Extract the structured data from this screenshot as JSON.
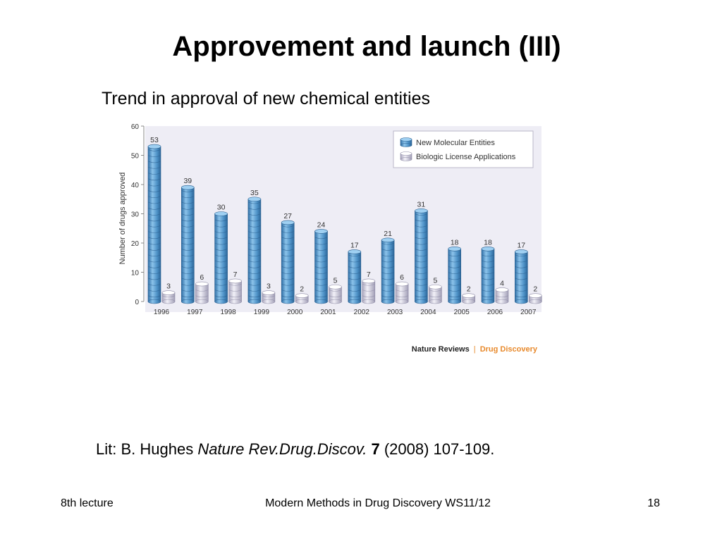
{
  "title": "Approvement and launch (III)",
  "subtitle": "Trend in approval of new chemical entities",
  "chart_data": {
    "type": "bar",
    "categories": [
      "1996",
      "1997",
      "1998",
      "1999",
      "2000",
      "2001",
      "2002",
      "2003",
      "2004",
      "2005",
      "2006",
      "2007"
    ],
    "series": [
      {
        "name": "New Molecular Entities",
        "values": [
          53,
          39,
          30,
          35,
          27,
          24,
          17,
          21,
          31,
          18,
          18,
          17
        ],
        "color": "#4f93c8"
      },
      {
        "name": "Biologic License Applications",
        "values": [
          3,
          6,
          7,
          3,
          2,
          5,
          7,
          6,
          5,
          2,
          4,
          2
        ],
        "color": "#c9c6d8"
      }
    ],
    "ylabel": "Number of drugs approved",
    "xlabel": "",
    "ylim": [
      0,
      60
    ],
    "yticks": [
      0,
      10,
      20,
      30,
      40,
      50,
      60
    ],
    "legend": "top-right",
    "grid": false,
    "background": "#eeedf5",
    "source": {
      "journal": "Nature Reviews",
      "separator": "|",
      "section": "Drug Discovery",
      "journal_color": "#222222",
      "section_color": "#e8892b"
    }
  },
  "reference": {
    "prefix": "Lit: B. Hughes ",
    "journal": "Nature Rev.Drug.Discov.",
    "volume": "7",
    "rest": " (2008) 107-109."
  },
  "footer": {
    "left": "8th lecture",
    "center": "Modern Methods in Drug Discovery WS11/12",
    "right": "18"
  }
}
